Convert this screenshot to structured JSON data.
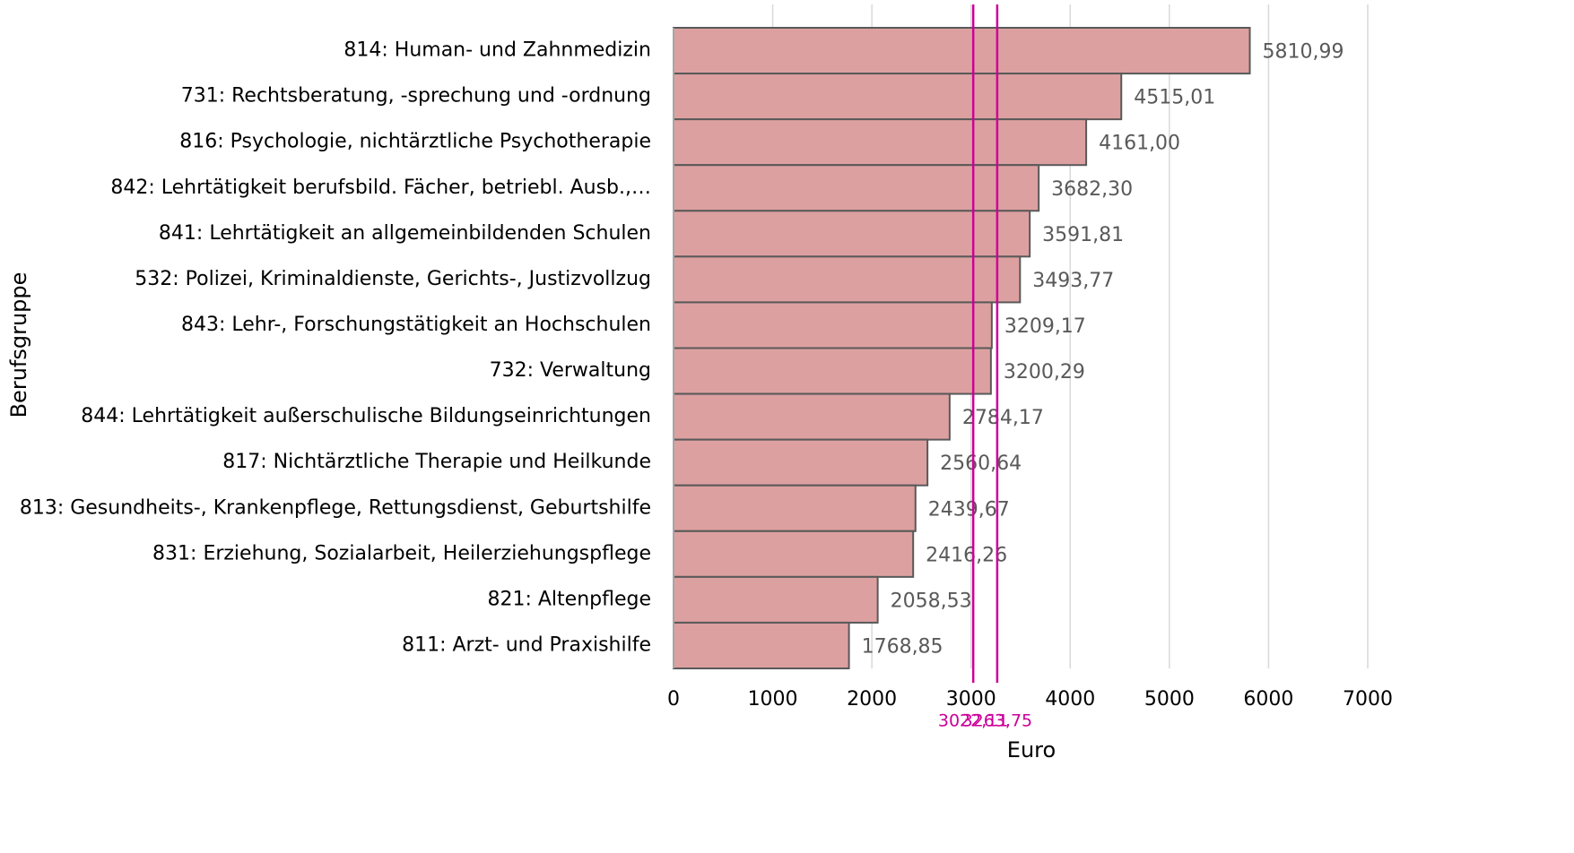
{
  "chart_data": {
    "type": "hbar",
    "x_label": "Euro",
    "y_label": "Berufsgruppe",
    "categories": [
      "814: Human- und Zahnmedizin",
      "731: Rechtsberatung, -sprechung und -ordnung",
      "816: Psychologie, nichtärztliche Psychotherapie",
      "842: Lehrtätigkeit berufsbild. Fächer, betriebl. Ausb.,…",
      "841: Lehrtätigkeit an allgemeinbildenden Schulen",
      "532: Polizei, Kriminaldienste, Gerichts-, Justizvollzug",
      "843: Lehr-, Forschungstätigkeit an Hochschulen",
      "732: Verwaltung",
      "844: Lehrtätigkeit außerschulische Bildungseinrichtungen",
      "817: Nichtärztliche Therapie und Heilkunde",
      "813: Gesundheits-, Krankenpflege, Rettungsdienst, Geburtshilfe",
      "831: Erziehung, Sozialarbeit, Heilerziehungspflege",
      "821: Altenpflege",
      "811: Arzt- und Praxishilfe"
    ],
    "values": [
      5810.99,
      4515.01,
      4161.0,
      3682.3,
      3591.81,
      3493.77,
      3209.17,
      3200.29,
      2784.17,
      2560.64,
      2439.67,
      2416.26,
      2058.53,
      1768.85
    ],
    "value_labels": [
      "5810,99",
      "4515,01",
      "4161,00",
      "3682,30",
      "3591,81",
      "3493,77",
      "3209,17",
      "3200,29",
      "2784,17",
      "2560,64",
      "2439,67",
      "2416,26",
      "2058,53",
      "1768,85"
    ],
    "color": "#dda0a0",
    "xlim": [
      0,
      7000
    ],
    "xticks": [
      0,
      1000,
      2000,
      3000,
      4000,
      5000,
      6000,
      7000
    ],
    "grid": true,
    "reference_lines": [
      {
        "value": 3022.11,
        "label": "3022,11",
        "color": "#cc0099"
      },
      {
        "value": 3263.75,
        "label": "3263,75",
        "color": "#cc0099"
      }
    ]
  }
}
